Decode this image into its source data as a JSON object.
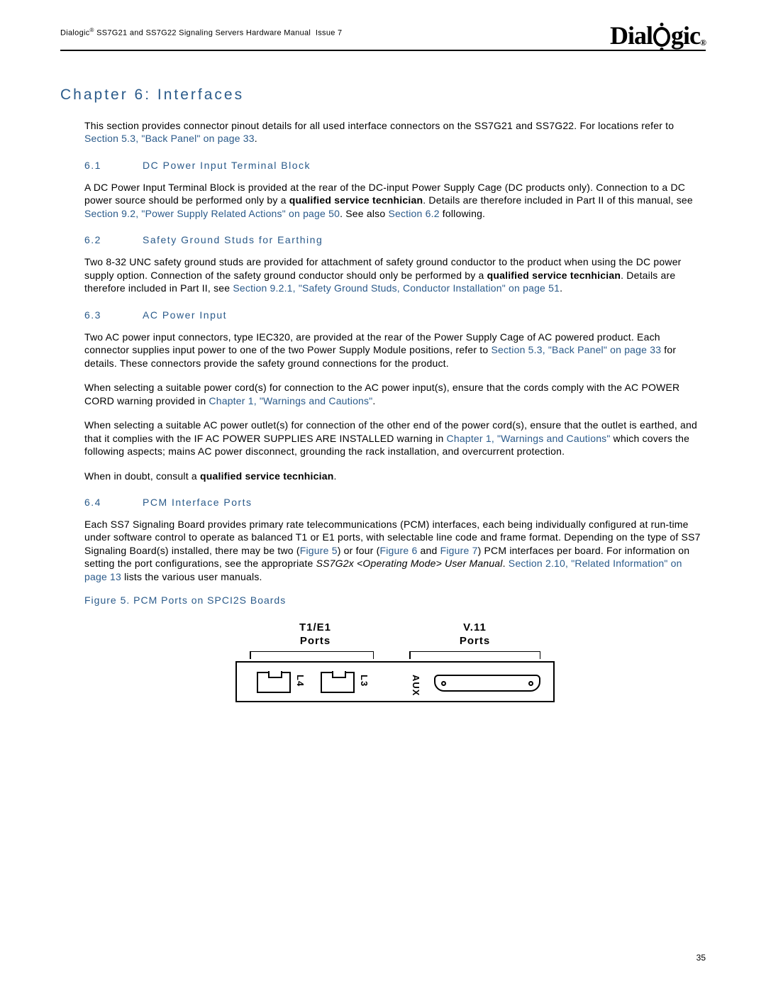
{
  "header": {
    "manual_line": "Dialogic® SS7G21 and SS7G22 Signaling Servers Hardware Manual Issue 7",
    "logo_text": "Dialogic"
  },
  "chapter": {
    "title": "Chapter 6: Interfaces"
  },
  "intro": {
    "text_a": "This section provides connector pinout details for all used interface connectors on the SS7G21 and SS7G22. For locations refer to ",
    "link_a": "Section 5.3, \"Back Panel\" on page 33",
    "text_b": "."
  },
  "s61": {
    "num": "6.1",
    "title": "DC Power Input Terminal Block",
    "p1a": "A DC Power Input Terminal Block is provided at the rear of the DC-input Power Supply Cage (DC products only). Connection to a DC power source should be performed only by a ",
    "p1bold": "qualified service tecnhician",
    "p1b": ". Details are therefore included in Part II of this manual, see ",
    "link1": "Section 9.2, \"Power Supply Related Actions\" on page 50",
    "p1c": ". See also ",
    "link2": "Section 6.2",
    "p1d": " following."
  },
  "s62": {
    "num": "6.2",
    "title": "Safety Ground Studs for Earthing",
    "p1a": "Two 8-32 UNC safety ground studs are provided for attachment of safety ground conductor to the product when using the DC power supply option. Connection of the safety ground conductor should only be performed by a ",
    "p1bold": "qualified service tecnhician",
    "p1b": ". Details are therefore included in Part II, see ",
    "link1": "Section 9.2.1, \"Safety Ground Studs, Conductor Installation\" on page 51",
    "p1c": "."
  },
  "s63": {
    "num": "6.3",
    "title": "AC Power Input",
    "p1a": "Two AC power input connectors, type IEC320, are provided at the rear of the Power Supply Cage of AC powered product. Each connector supplies input power to one of the two Power Supply Module positions, refer to ",
    "link1": "Section 5.3, \"Back Panel\" on page 33",
    "p1b": " for details. These connectors provide the safety ground connections for the product.",
    "p2a": "When selecting a suitable power cord(s) for connection to the AC power input(s), ensure that the cords comply with the AC POWER CORD warning provided in ",
    "link2": "Chapter 1, \"Warnings and Cautions\"",
    "p2b": ".",
    "p3a": "When selecting a suitable AC power outlet(s) for connection of the other end of the power cord(s), ensure that the outlet is earthed, and that it complies with the IF AC POWER SUPPLIES ARE INSTALLED warning in ",
    "link3": "Chapter 1, \"Warnings and Cautions\"",
    "p3b": " which covers the following aspects; mains AC power disconnect, grounding the rack installation, and overcurrent protection.",
    "p4a": "When in doubt, consult a ",
    "p4bold": "qualified service tecnhician",
    "p4b": "."
  },
  "s64": {
    "num": "6.4",
    "title": "PCM Interface Ports",
    "p1a": "Each SS7 Signaling Board provides primary rate telecommunications (PCM) interfaces, each being individually configured at run-time under software control to operate as balanced T1 or E1 ports, with selectable line code and frame format. Depending on the type of SS7 Signaling Board(s) installed, there may be two (",
    "linkf5": "Figure 5",
    "p1b": ") or four (",
    "linkf6": "Figure 6",
    "p1c": " and ",
    "linkf7": "Figure 7",
    "p1d": ") PCM interfaces per board. For information on setting the port configurations, see the appropriate ",
    "p1it": "SS7G2x <Operating Mode> User Manual",
    "p1e": ". ",
    "link210": "Section 2.10, \"Related Information\" on page 13",
    "p1f": " lists the various user manuals."
  },
  "figure5": {
    "caption": "Figure 5. PCM Ports on SPCI2S Boards",
    "label_left_1": "T1/E1",
    "label_left_2": "Ports",
    "label_right_1": "V.11",
    "label_right_2": "Ports",
    "port_l4": "L4",
    "port_l3": "L3",
    "port_aux": "AUX"
  },
  "page_number": "35"
}
